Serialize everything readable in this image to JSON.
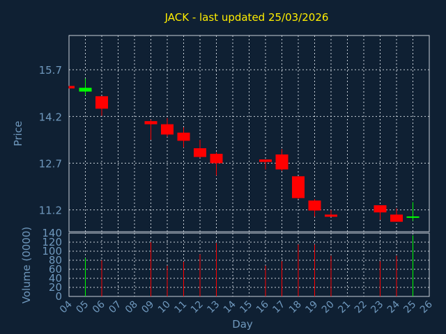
{
  "colors": {
    "background": "#0f2033",
    "up": "#00ff00",
    "down": "#ff0000",
    "title": "#ffee00",
    "axis_text": "#6f98bd",
    "grid": "#c8d0d8"
  },
  "chart_data": {
    "type": "candlestick",
    "title": "JACK - last updated 25/03/2026",
    "xlabel": "Day",
    "ylabel": "Price",
    "volume_label": "Volume (0000)",
    "x_ticks": [
      "04",
      "05",
      "06",
      "07",
      "08",
      "09",
      "10",
      "11",
      "12",
      "13",
      "14",
      "15",
      "16",
      "17",
      "18",
      "19",
      "20",
      "21",
      "22",
      "23",
      "24",
      "25",
      "26"
    ],
    "x_range": [
      4,
      26
    ],
    "price_ticks": [
      11.2,
      12.7,
      14.2,
      15.7
    ],
    "price_range": [
      10.5,
      16.8
    ],
    "volume_ticks": [
      0,
      20,
      40,
      60,
      80,
      100,
      120,
      140
    ],
    "volume_range": [
      0,
      140
    ],
    "grid": true,
    "candles": [
      {
        "day": 4,
        "open": 15.18,
        "high": 15.18,
        "low": 15.1,
        "close": 15.1,
        "volume": 0
      },
      {
        "day": 5,
        "open": 15.0,
        "high": 15.42,
        "low": 14.88,
        "close": 15.12,
        "volume": 85
      },
      {
        "day": 6,
        "open": 14.85,
        "high": 14.85,
        "low": 14.22,
        "close": 14.45,
        "volume": 80
      },
      {
        "day": 9,
        "open": 14.05,
        "high": 14.1,
        "low": 13.45,
        "close": 13.95,
        "volume": 120
      },
      {
        "day": 10,
        "open": 13.95,
        "high": 14.15,
        "low": 13.55,
        "close": 13.62,
        "volume": 68
      },
      {
        "day": 11,
        "open": 13.68,
        "high": 13.85,
        "low": 13.2,
        "close": 13.42,
        "volume": 77
      },
      {
        "day": 12,
        "open": 13.18,
        "high": 13.45,
        "low": 12.88,
        "close": 12.9,
        "volume": 93
      },
      {
        "day": 13,
        "open": 13.0,
        "high": 13.05,
        "low": 12.3,
        "close": 12.7,
        "volume": 118
      },
      {
        "day": 16,
        "open": 12.82,
        "high": 12.82,
        "low": 12.5,
        "close": 12.74,
        "volume": 68
      },
      {
        "day": 17,
        "open": 12.98,
        "high": 13.15,
        "low": 12.45,
        "close": 12.5,
        "volume": 78
      },
      {
        "day": 18,
        "open": 12.28,
        "high": 12.28,
        "low": 11.55,
        "close": 11.58,
        "volume": 115
      },
      {
        "day": 19,
        "open": 11.5,
        "high": 11.55,
        "low": 10.98,
        "close": 11.18,
        "volume": 115
      },
      {
        "day": 20,
        "open": 11.05,
        "high": 11.2,
        "low": 10.98,
        "close": 10.98,
        "volume": 90
      },
      {
        "day": 23,
        "open": 11.35,
        "high": 11.35,
        "low": 10.88,
        "close": 11.12,
        "volume": 78
      },
      {
        "day": 24,
        "open": 11.05,
        "high": 11.25,
        "low": 10.82,
        "close": 10.82,
        "volume": 90
      },
      {
        "day": 25,
        "open": 10.98,
        "high": 11.45,
        "low": 10.85,
        "close": 10.99,
        "volume": 135
      }
    ]
  }
}
